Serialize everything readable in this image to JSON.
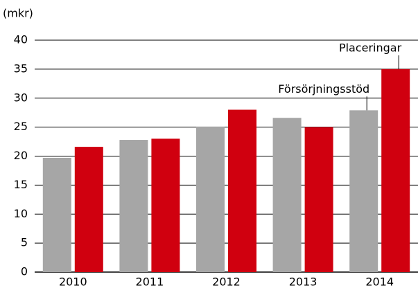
{
  "chart_data": {
    "type": "bar",
    "y_label": "(mkr)",
    "categories": [
      "2010",
      "2011",
      "2012",
      "2013",
      "2014"
    ],
    "series": [
      {
        "name": "Försörjningsstöd",
        "color": "#a6a6a6",
        "values": [
          19.7,
          22.8,
          25.1,
          26.6,
          27.9
        ]
      },
      {
        "name": "Placeringar",
        "color": "#d0000f",
        "values": [
          21.6,
          23.0,
          28.0,
          25.0,
          35.0
        ]
      }
    ],
    "ylim": [
      0,
      40
    ],
    "yticks": [
      0,
      5,
      10,
      15,
      20,
      25,
      30,
      35,
      40
    ],
    "grid": true
  }
}
